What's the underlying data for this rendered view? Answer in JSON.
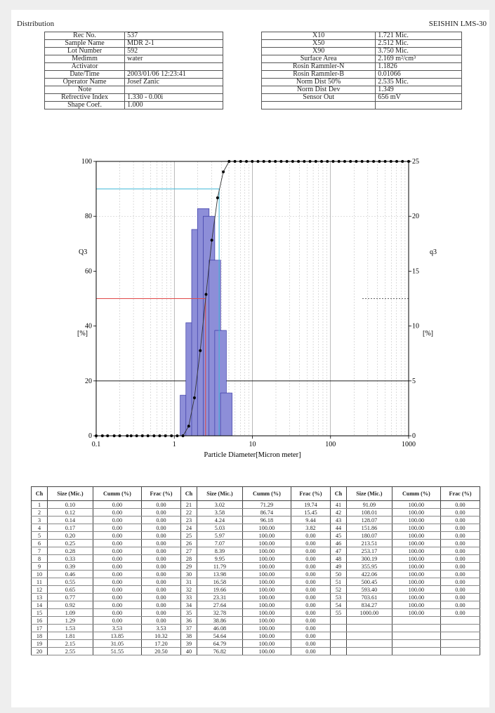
{
  "header": {
    "left": "Distribution",
    "right": "SEISHIN LMS-30"
  },
  "info_left": [
    [
      "Rec No.",
      "537"
    ],
    [
      "Sample Name",
      "MDR 2-1"
    ],
    [
      "Lot Number",
      "592"
    ],
    [
      "Medimm",
      "water"
    ],
    [
      "Activator",
      ""
    ],
    [
      "Date/Time",
      "2003/01/06 12:23:41"
    ],
    [
      "Operator Name",
      "Josef Zanic"
    ],
    [
      "Note",
      ""
    ],
    [
      "Refrective Index",
      "1.330 - 0.00i"
    ],
    [
      "Shape Coef.",
      "1.000"
    ]
  ],
  "info_right": [
    [
      "X10",
      "1.721  Mic."
    ],
    [
      "X50",
      "2.512  Mic."
    ],
    [
      "X90",
      "3.750  Mic."
    ],
    [
      "Surface Area",
      "2.169  m²/cm³"
    ],
    [
      "Rosin Rammler-N",
      "1.1826"
    ],
    [
      "Rosin Rammler-B",
      "0.01066"
    ],
    [
      "Norm Dist 50%",
      "2.535  Mic."
    ],
    [
      "Norm Dist Dev",
      "1.349"
    ],
    [
      "Sensor Out",
      "656  mV"
    ],
    [
      "",
      ""
    ]
  ],
  "chart_data": {
    "type": "bar+line",
    "xlabel": "Particle Diameter[Micron meter]",
    "ylabel_left": "Q3",
    "ylabel_right": "q3",
    "unit_left": "[%]",
    "unit_right": "[%]",
    "x_scale": "log",
    "xlim": [
      0.1,
      1000
    ],
    "xticks": [
      "0.1",
      "1",
      "10",
      "100",
      "1000"
    ],
    "ylim_left": [
      0,
      100
    ],
    "yticks_left": [
      "0",
      "20",
      "40",
      "60",
      "80",
      "100"
    ],
    "ylim_right": [
      0,
      25
    ],
    "yticks_right": [
      "0",
      "5",
      "10",
      "15",
      "20",
      "25"
    ],
    "markers": {
      "x10": 1.721,
      "x50": 2.512,
      "x90": 3.75
    },
    "marker_colors": {
      "x50": "#e04a4a",
      "x90": "#3bb6d8",
      "bars": "#8d8ed8",
      "bar_edge": "#3a3aa6"
    },
    "cumulative": {
      "size": [
        0.1,
        0.12,
        0.14,
        0.17,
        0.2,
        0.25,
        0.28,
        0.33,
        0.39,
        0.46,
        0.55,
        0.65,
        0.77,
        0.92,
        1.09,
        1.29,
        1.53,
        1.81,
        2.15,
        2.55,
        3.02,
        3.58,
        4.24,
        5.03,
        5.97,
        7.07,
        8.39,
        9.95,
        11.79,
        13.98,
        16.58,
        19.66,
        23.31,
        27.64,
        32.78,
        38.86,
        46.08,
        54.64,
        64.79,
        76.82,
        91.09,
        108.01,
        128.07,
        151.86,
        180.07,
        213.51,
        253.17,
        300.19,
        355.95,
        422.06,
        500.45,
        593.4,
        703.61,
        834.27,
        1000.0
      ],
      "cumm": [
        0,
        0,
        0,
        0,
        0,
        0,
        0,
        0,
        0,
        0,
        0,
        0,
        0,
        0,
        0,
        0,
        3.53,
        13.85,
        31.05,
        51.55,
        71.29,
        86.74,
        96.18,
        100,
        100,
        100,
        100,
        100,
        100,
        100,
        100,
        100,
        100,
        100,
        100,
        100,
        100,
        100,
        100,
        100,
        100,
        100,
        100,
        100,
        100,
        100,
        100,
        100,
        100,
        100,
        100,
        100,
        100,
        100,
        100
      ]
    },
    "histogram_q3": [
      {
        "size": 1.41,
        "value": 3.7
      },
      {
        "size": 1.67,
        "value": 10.3
      },
      {
        "size": 1.98,
        "value": 18.8
      },
      {
        "size": 2.35,
        "value": 20.7
      },
      {
        "size": 2.78,
        "value": 20.0
      },
      {
        "size": 3.3,
        "value": 16.0
      },
      {
        "size": 3.91,
        "value": 9.6
      },
      {
        "size": 4.63,
        "value": 3.9
      }
    ]
  },
  "table": {
    "headers": [
      "Ch",
      "Size (Mic.)",
      "Cumm (%)",
      "Frac (%)"
    ],
    "rows": [
      [
        "1",
        "0.10",
        "0.00",
        "0.00",
        "21",
        "3.02",
        "71.29",
        "19.74",
        "41",
        "91.09",
        "100.00",
        "0.00"
      ],
      [
        "2",
        "0.12",
        "0.00",
        "0.00",
        "22",
        "3.58",
        "86.74",
        "15.45",
        "42",
        "108.01",
        "100.00",
        "0.00"
      ],
      [
        "3",
        "0.14",
        "0.00",
        "0.00",
        "23",
        "4.24",
        "96.18",
        "9.44",
        "43",
        "128.07",
        "100.00",
        "0.00"
      ],
      [
        "4",
        "0.17",
        "0.00",
        "0.00",
        "24",
        "5.03",
        "100.00",
        "3.82",
        "44",
        "151.86",
        "100.00",
        "0.00"
      ],
      [
        "5",
        "0.20",
        "0.00",
        "0.00",
        "25",
        "5.97",
        "100.00",
        "0.00",
        "45",
        "180.07",
        "100.00",
        "0.00"
      ],
      [
        "6",
        "0.25",
        "0.00",
        "0.00",
        "26",
        "7.07",
        "100.00",
        "0.00",
        "46",
        "213.51",
        "100.00",
        "0.00"
      ],
      [
        "7",
        "0.28",
        "0.00",
        "0.00",
        "27",
        "8.39",
        "100.00",
        "0.00",
        "47",
        "253.17",
        "100.00",
        "0.00"
      ],
      [
        "8",
        "0.33",
        "0.00",
        "0.00",
        "28",
        "9.95",
        "100.00",
        "0.00",
        "48",
        "300.19",
        "100.00",
        "0.00"
      ],
      [
        "9",
        "0.39",
        "0.00",
        "0.00",
        "29",
        "11.79",
        "100.00",
        "0.00",
        "49",
        "355.95",
        "100.00",
        "0.00"
      ],
      [
        "10",
        "0.46",
        "0.00",
        "0.00",
        "30",
        "13.98",
        "100.00",
        "0.00",
        "50",
        "422.06",
        "100.00",
        "0.00"
      ],
      [
        "11",
        "0.55",
        "0.00",
        "0.00",
        "31",
        "16.58",
        "100.00",
        "0.00",
        "51",
        "500.45",
        "100.00",
        "0.00"
      ],
      [
        "12",
        "0.65",
        "0.00",
        "0.00",
        "32",
        "19.66",
        "100.00",
        "0.00",
        "52",
        "593.40",
        "100.00",
        "0.00"
      ],
      [
        "13",
        "0.77",
        "0.00",
        "0.00",
        "33",
        "23.31",
        "100.00",
        "0.00",
        "53",
        "703.61",
        "100.00",
        "0.00"
      ],
      [
        "14",
        "0.92",
        "0.00",
        "0.00",
        "34",
        "27.64",
        "100.00",
        "0.00",
        "54",
        "834.27",
        "100.00",
        "0.00"
      ],
      [
        "15",
        "1.09",
        "0.00",
        "0.00",
        "35",
        "32.78",
        "100.00",
        "0.00",
        "55",
        "1000.00",
        "100.00",
        "0.00"
      ],
      [
        "16",
        "1.29",
        "0.00",
        "0.00",
        "36",
        "38.86",
        "100.00",
        "0.00",
        "",
        "",
        "",
        ""
      ],
      [
        "17",
        "1.53",
        "3.53",
        "3.53",
        "37",
        "46.08",
        "100.00",
        "0.00",
        "",
        "",
        "",
        ""
      ],
      [
        "18",
        "1.81",
        "13.85",
        "10.32",
        "38",
        "54.64",
        "100.00",
        "0.00",
        "",
        "",
        "",
        ""
      ],
      [
        "19",
        "2.15",
        "31.05",
        "17.20",
        "39",
        "64.79",
        "100.00",
        "0.00",
        "",
        "",
        "",
        ""
      ],
      [
        "20",
        "2.55",
        "51.55",
        "20.50",
        "40",
        "76.82",
        "100.00",
        "0.00",
        "",
        "",
        "",
        ""
      ]
    ]
  }
}
